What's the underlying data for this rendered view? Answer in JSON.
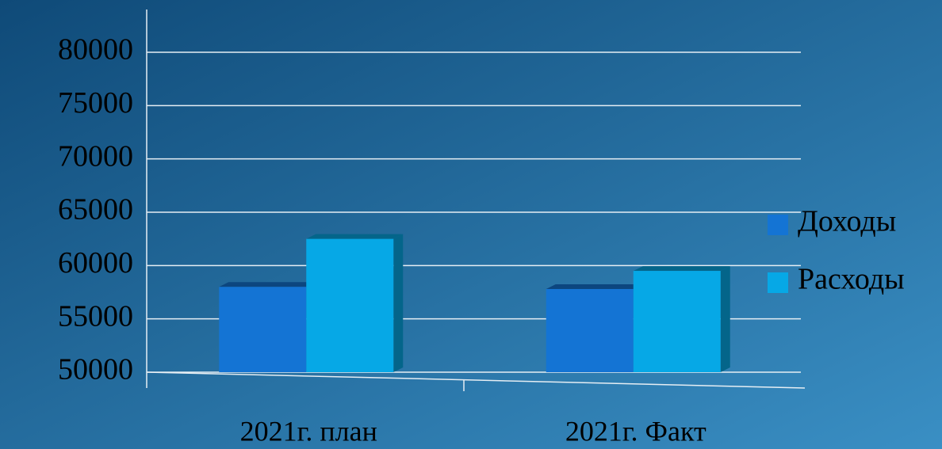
{
  "chart_data": {
    "type": "bar",
    "categories": [
      "2021г. план",
      "2021г. Факт"
    ],
    "series": [
      {
        "name": "Доходы",
        "color": "#1474d4",
        "values": [
          58000,
          57800
        ]
      },
      {
        "name": "Расходы",
        "color": "#06a8e6",
        "values": [
          62500,
          59500
        ]
      }
    ],
    "ylim": [
      50000,
      80000
    ],
    "yticks": [
      50000,
      55000,
      60000,
      65000,
      70000,
      75000,
      80000
    ],
    "grid": true,
    "legend": "right"
  }
}
